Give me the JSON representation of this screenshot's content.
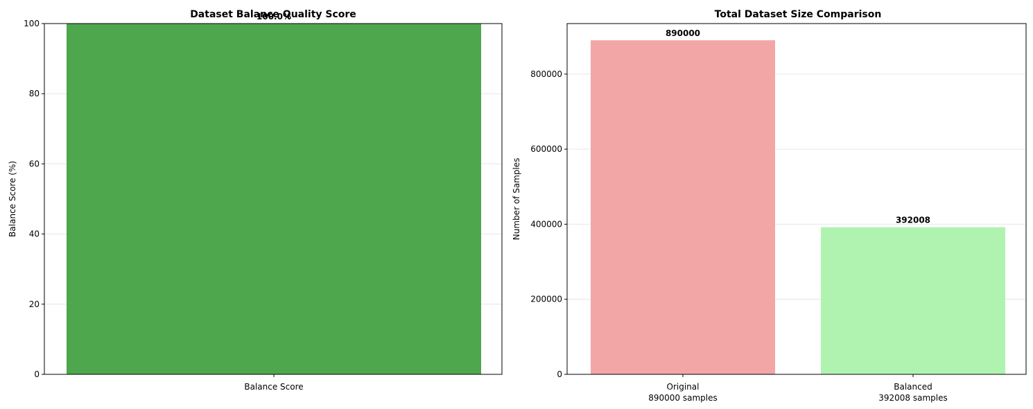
{
  "chart_data": [
    {
      "type": "bar",
      "title": "Dataset Balance Quality Score",
      "xlabel": "",
      "ylabel": "Balance Score (%)",
      "categories": [
        "Balance Score"
      ],
      "values": [
        100.0
      ],
      "data_labels": [
        "100.0%"
      ],
      "colors": [
        "#4ea64d"
      ],
      "ylim": [
        0,
        100
      ],
      "yticks": [
        0,
        20,
        40,
        60,
        80,
        100
      ],
      "grid": "y"
    },
    {
      "type": "bar",
      "title": "Total Dataset Size Comparison",
      "xlabel": "",
      "ylabel": "Number of Samples",
      "categories": [
        "Original\n890000 samples",
        "Balanced\n392008 samples"
      ],
      "values": [
        890000,
        392008
      ],
      "data_labels": [
        "890000",
        "392008"
      ],
      "colors": [
        "#f3a6a6",
        "#b0f3b0"
      ],
      "ylim": [
        0,
        934500
      ],
      "yticks": [
        0,
        200000,
        400000,
        600000,
        800000
      ],
      "grid": "y"
    }
  ]
}
